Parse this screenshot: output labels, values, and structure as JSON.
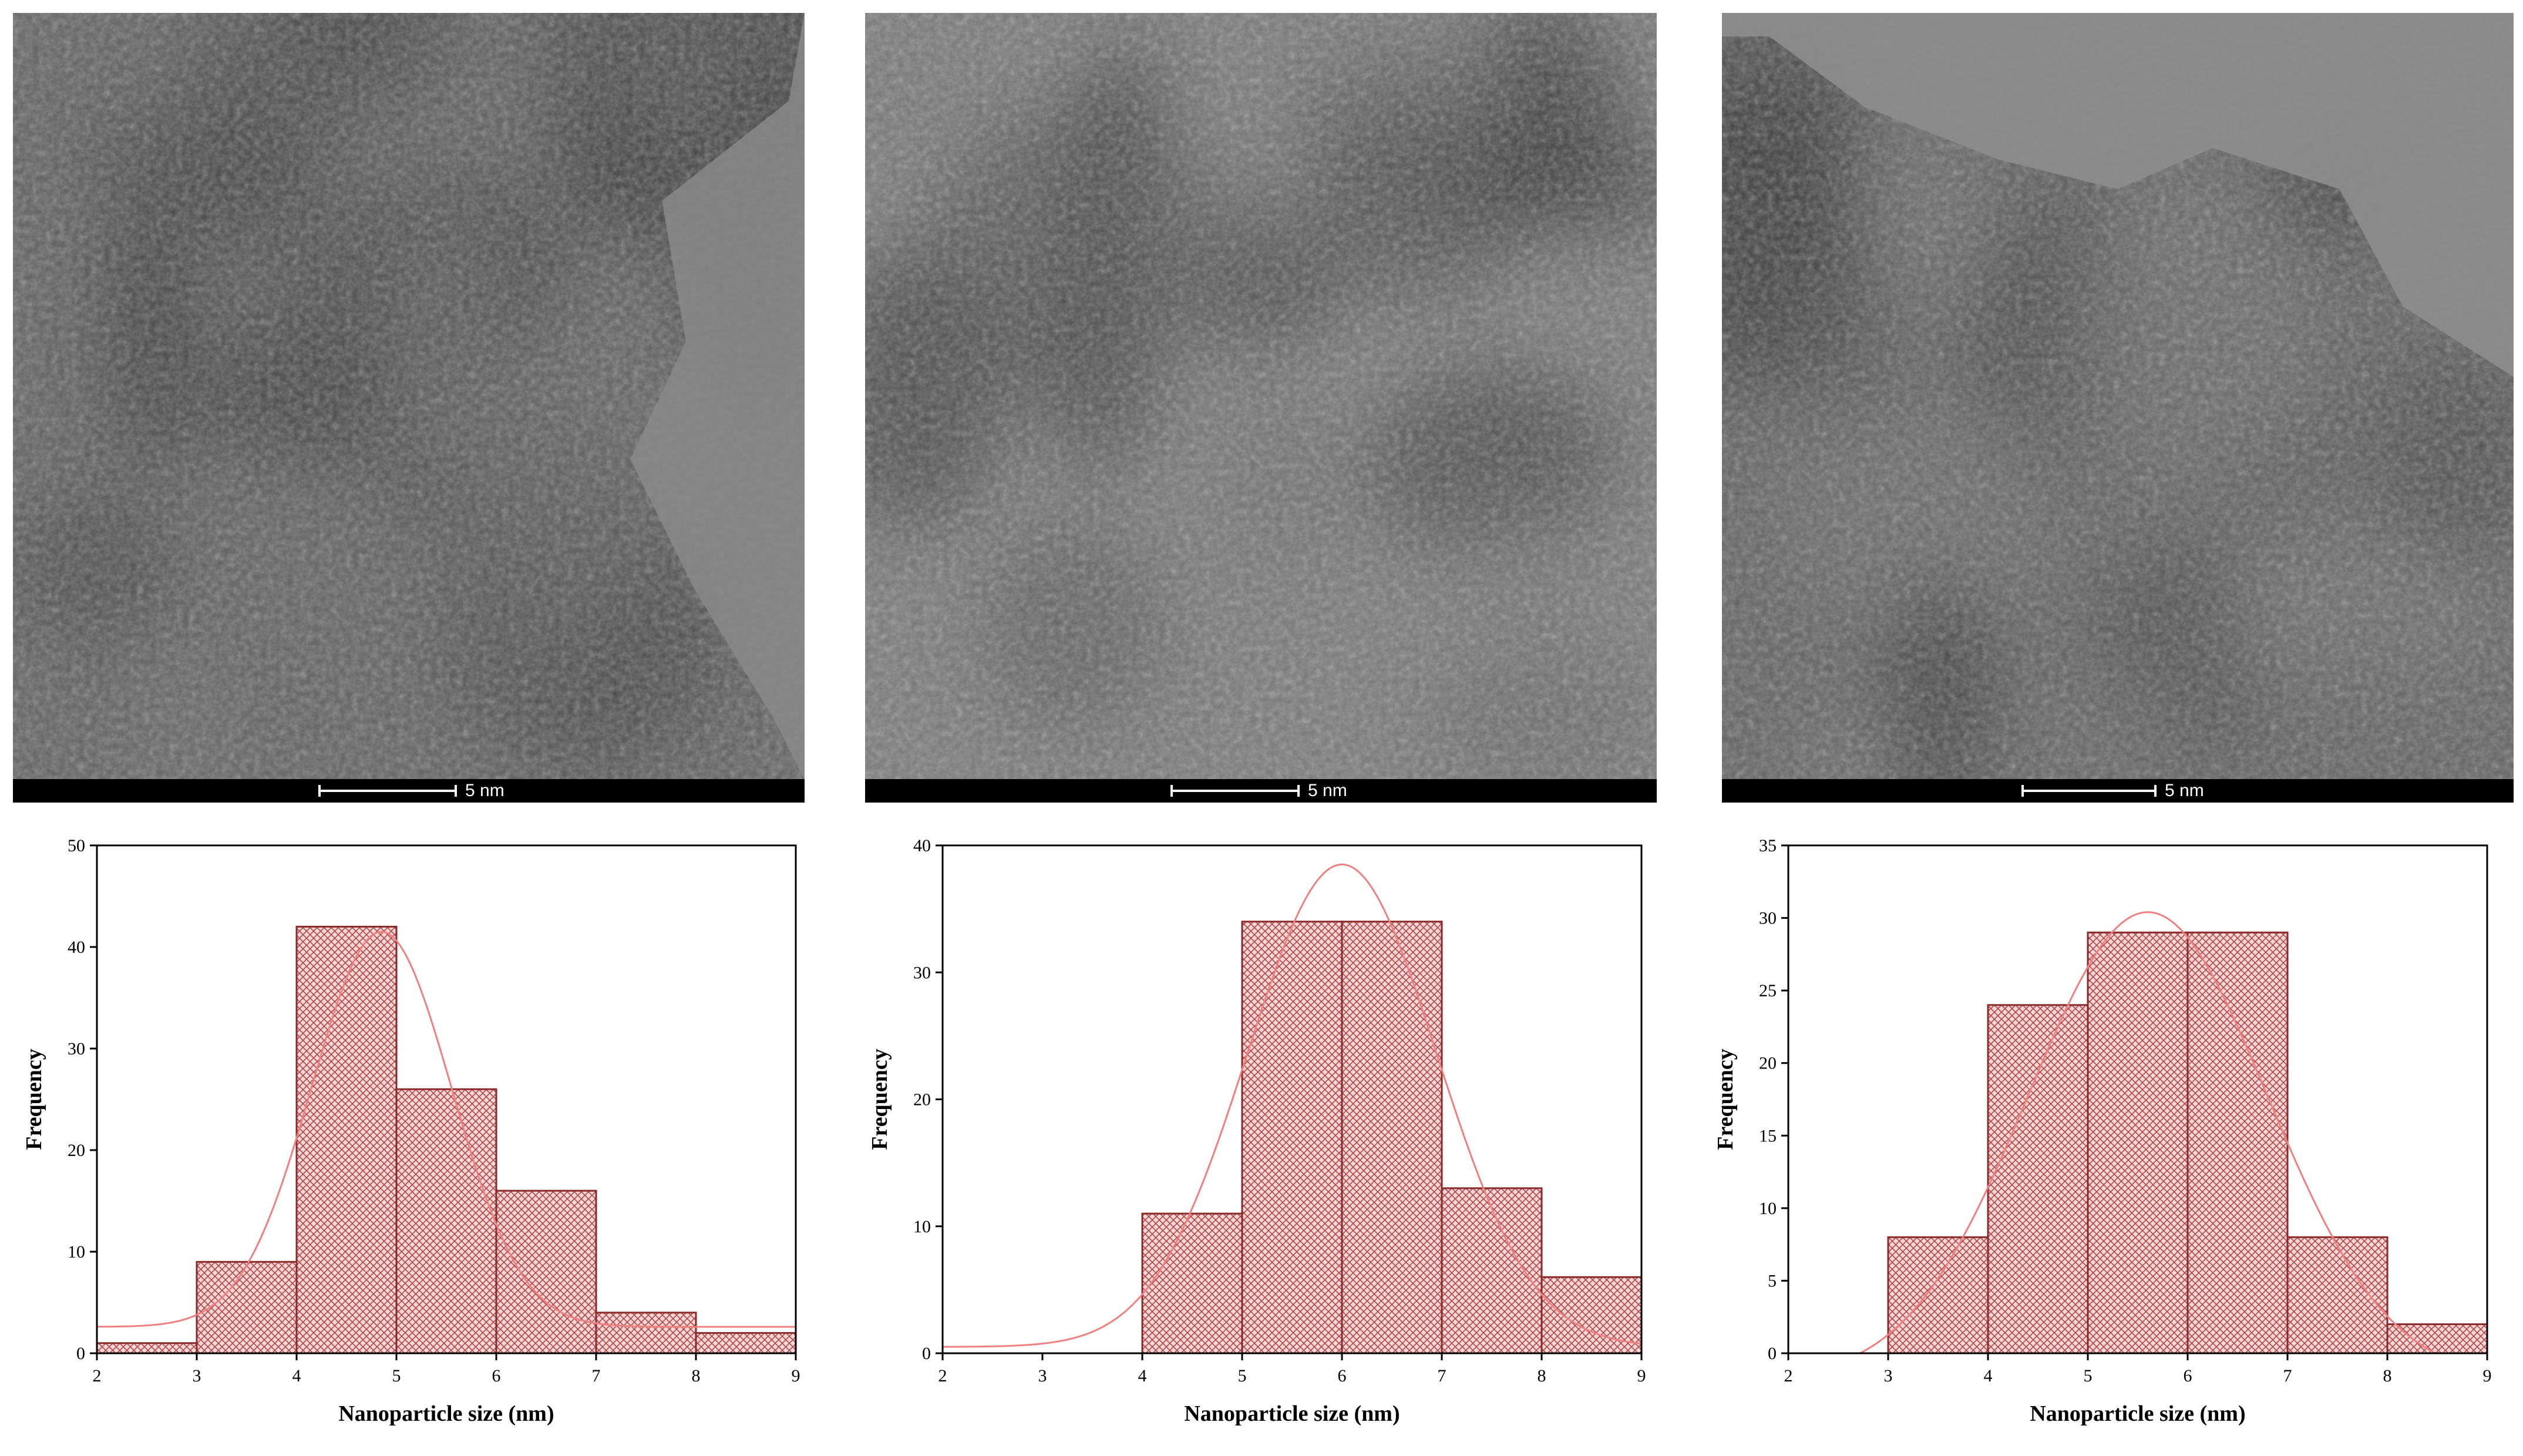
{
  "figure": {
    "micrographs": [
      {
        "scale_label": "5 nm"
      },
      {
        "scale_label": "5 nm"
      },
      {
        "scale_label": "5 nm"
      }
    ]
  },
  "colors": {
    "bar_edge": "#8b2a2a",
    "bar_fill": "#f4d6d6",
    "hatch": "#b04646",
    "fit_curve": "#f08080"
  },
  "chart_data": [
    {
      "type": "bar",
      "bin_edges": [
        2,
        3,
        4,
        5,
        6,
        7,
        8,
        9
      ],
      "values": [
        1,
        9,
        42,
        26,
        16,
        4,
        2
      ],
      "fit": {
        "kind": "gaussian",
        "mean": 4.85,
        "sd": 0.7,
        "amplitude": 38.9,
        "baseline": 2.6
      },
      "xlabel": "Nanoparticle size (nm)",
      "ylabel": "Frequency",
      "xlim": [
        2,
        9
      ],
      "ylim": [
        0,
        50
      ],
      "xticks": [
        "2",
        "3",
        "4",
        "5",
        "6",
        "7",
        "8",
        "9"
      ],
      "yticks": [
        "0",
        "10",
        "20",
        "30",
        "40",
        "50"
      ],
      "ytick_values": [
        0,
        10,
        20,
        30,
        40,
        50
      ],
      "grid": false
    },
    {
      "type": "bar",
      "bin_edges": [
        2,
        3,
        4,
        5,
        6,
        7,
        8,
        9
      ],
      "values": [
        0,
        0,
        11,
        34,
        34,
        13,
        6
      ],
      "fit": {
        "kind": "gaussian",
        "mean": 6.0,
        "sd": 0.95,
        "amplitude": 38.0,
        "baseline": 0.5
      },
      "xlabel": "Nanoparticle size (nm)",
      "ylabel": "Frequency",
      "xlim": [
        2,
        9
      ],
      "ylim": [
        0,
        40
      ],
      "xticks": [
        "2",
        "3",
        "4",
        "5",
        "6",
        "7",
        "8",
        "9"
      ],
      "yticks": [
        "0",
        "10",
        "20",
        "30",
        "40"
      ],
      "ytick_values": [
        0,
        10,
        20,
        30,
        40
      ],
      "grid": false
    },
    {
      "type": "bar",
      "bin_edges": [
        2,
        3,
        4,
        5,
        6,
        7,
        8,
        9
      ],
      "values": [
        0,
        8,
        24,
        29,
        29,
        8,
        2
      ],
      "fit": {
        "kind": "gaussian",
        "mean": 5.6,
        "sd": 1.2,
        "amplitude": 32.2,
        "baseline": -1.8
      },
      "xlabel": "Nanoparticle size (nm)",
      "ylabel": "Frequency",
      "xlim": [
        2,
        9
      ],
      "ylim": [
        0,
        35
      ],
      "xticks": [
        "2",
        "3",
        "4",
        "5",
        "6",
        "7",
        "8",
        "9"
      ],
      "yticks": [
        "0",
        "5",
        "10",
        "15",
        "20",
        "25",
        "30",
        "35"
      ],
      "ytick_values": [
        0,
        5,
        10,
        15,
        20,
        25,
        30,
        35
      ],
      "grid": false
    }
  ]
}
